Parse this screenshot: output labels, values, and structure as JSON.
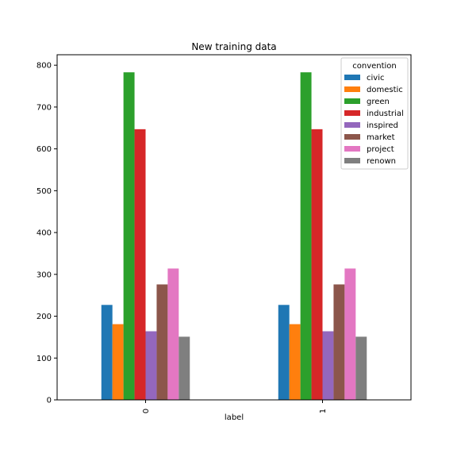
{
  "chart_data": {
    "type": "bar",
    "title": "New training data",
    "xlabel": "label",
    "ylabel": "",
    "categories": [
      "0",
      "1"
    ],
    "ylim": [
      0,
      825
    ],
    "yticks": [
      0,
      100,
      200,
      300,
      400,
      500,
      600,
      700,
      800
    ],
    "grid": false,
    "legend": {
      "title": "convention",
      "placement": "top-right"
    },
    "series": [
      {
        "name": "civic",
        "color": "#1f77b4",
        "values": [
          227,
          227
        ]
      },
      {
        "name": "domestic",
        "color": "#ff7f0e",
        "values": [
          181,
          181
        ]
      },
      {
        "name": "green",
        "color": "#2ca02c",
        "values": [
          783,
          783
        ]
      },
      {
        "name": "industrial",
        "color": "#d62728",
        "values": [
          647,
          647
        ]
      },
      {
        "name": "inspired",
        "color": "#9467bd",
        "values": [
          164,
          164
        ]
      },
      {
        "name": "market",
        "color": "#8c564b",
        "values": [
          276,
          276
        ]
      },
      {
        "name": "project",
        "color": "#e377c2",
        "values": [
          314,
          314
        ]
      },
      {
        "name": "renown",
        "color": "#7f7f7f",
        "values": [
          151,
          151
        ]
      }
    ]
  }
}
